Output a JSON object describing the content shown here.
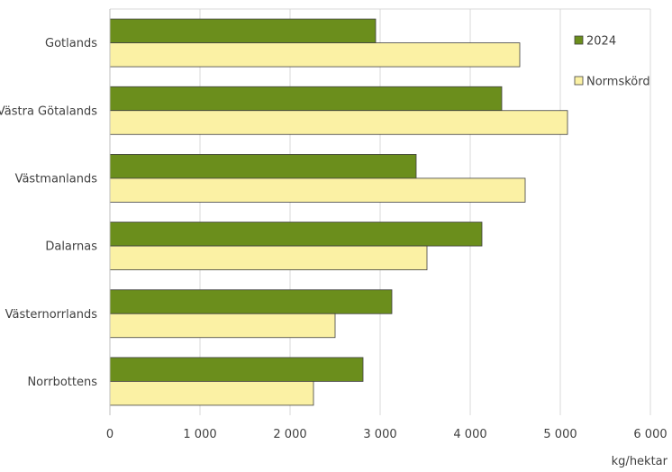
{
  "chart_data": {
    "type": "bar",
    "orientation": "horizontal",
    "categories": [
      "Gotlands",
      "Västra Götalands",
      "Västmanlands",
      "Dalarnas",
      "Västernorrlands",
      "Norrbottens"
    ],
    "series": [
      {
        "name": "2024",
        "color": "#6B8E1C",
        "values": [
          2950,
          4350,
          3400,
          4130,
          3130,
          2810
        ]
      },
      {
        "name": "Normskörd",
        "color": "#FBF1A4",
        "values": [
          4550,
          5080,
          4610,
          3520,
          2500,
          2260
        ]
      }
    ],
    "xlim": [
      0,
      6000
    ],
    "xticks": [
      0,
      1000,
      2000,
      3000,
      4000,
      5000,
      6000
    ],
    "xtick_labels": [
      "0",
      "1 000",
      "2 000",
      "3 000",
      "4 000",
      "5 000",
      "6 000"
    ],
    "xlabel": "kg/hektar",
    "grid": true,
    "legend_position": "top-right"
  }
}
